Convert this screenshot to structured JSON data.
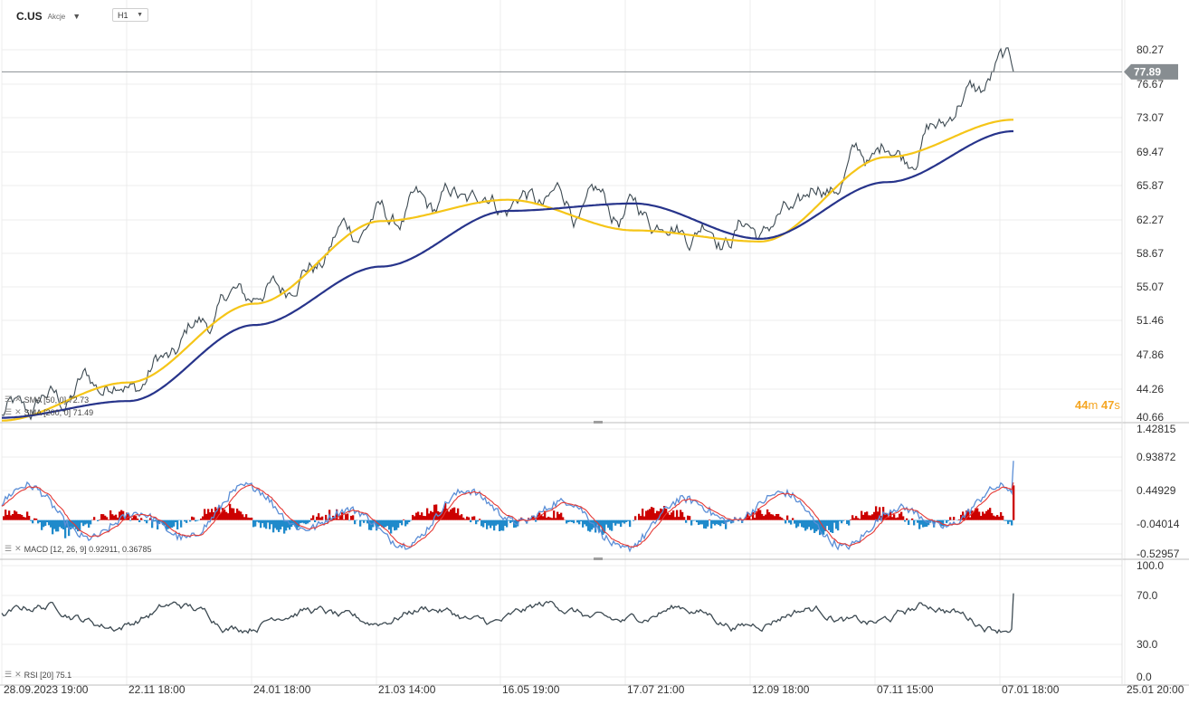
{
  "header": {
    "symbol": "C.US",
    "symbol_type": "Akcje",
    "timeframe": "H1"
  },
  "current_price": "77.89",
  "countdown": {
    "minutes": "44",
    "minutes_unit": "m",
    "seconds": "47",
    "seconds_unit": "s"
  },
  "indicators": {
    "sma50_label": "SMA [50, 0] 72.73",
    "sma200_label": "SMA [200, 0] 71.49",
    "macd_label": "MACD [12, 26, 9] 0.92911, 0.36785",
    "rsi_label": "RSI [20] 75.1"
  },
  "colors": {
    "price": "#3d4a52",
    "sma50": "#f5c518",
    "sma200": "#27348b",
    "macd_line": "#5b8ed6",
    "signal_line": "#e53935",
    "hist_pos": "#cc0000",
    "hist_neg": "#1f8acb",
    "rsi": "#3d4a52",
    "price_tag": "#878d91",
    "countdown": "#f5a623"
  },
  "chart_data": [
    {
      "type": "line",
      "title": "C.US",
      "y_ticks": [
        "80.27",
        "76.67",
        "73.07",
        "69.47",
        "65.87",
        "62.27",
        "58.67",
        "55.07",
        "51.46",
        "47.86",
        "44.26",
        "40.66"
      ],
      "ylim": [
        40.66,
        80.27
      ],
      "x_ticks": [
        "28.09.2023 19:00",
        "22.11 18:00",
        "24.01 18:00",
        "21.03 14:00",
        "16.05 19:00",
        "17.07 21:00",
        "12.09 18:00",
        "07.11 15:00",
        "07.01 18:00",
        "25.01 20:00"
      ],
      "series": [
        {
          "name": "C.US",
          "x": [
            "28.09.2023 19:00",
            "22.11 18:00",
            "24.01 18:00",
            "21.03 14:00",
            "16.05 19:00",
            "17.07 21:00",
            "12.09 18:00",
            "07.11 15:00",
            "07.01 18:00"
          ],
          "values": [
            40.66,
            44.8,
            53.8,
            62.1,
            64.3,
            62.4,
            61.2,
            69.3,
            77.89
          ]
        },
        {
          "name": "SMA [50, 0]",
          "x": [
            "28.09.2023 19:00",
            "22.11 18:00",
            "24.01 18:00",
            "21.03 14:00",
            "16.05 19:00",
            "17.07 21:00",
            "12.09 18:00",
            "07.11 15:00",
            "07.01 18:00"
          ],
          "values": [
            40.3,
            44.4,
            52.9,
            61.8,
            64.1,
            60.8,
            59.6,
            68.7,
            72.73
          ]
        },
        {
          "name": "SMA [200, 0]",
          "x": [
            "28.09.2023 19:00",
            "22.11 18:00",
            "24.01 18:00",
            "21.03 14:00",
            "16.05 19:00",
            "17.07 21:00",
            "12.09 18:00",
            "07.11 15:00",
            "07.01 18:00"
          ],
          "values": [
            40.6,
            42.4,
            50.6,
            56.9,
            62.9,
            63.7,
            59.9,
            66.0,
            71.49
          ]
        }
      ]
    },
    {
      "type": "bar",
      "title": "MACD [12, 26, 9]",
      "y_ticks": [
        "1.42815",
        "0.93872",
        "0.44929",
        "-0.04014",
        "-0.52957"
      ],
      "ylim": [
        -0.52957,
        1.42815
      ],
      "series": [
        {
          "name": "MACD [12, 26, 9]",
          "last": 0.92911
        },
        {
          "name": "MACD [12, 26, 9]",
          "last": 0.36785
        }
      ]
    },
    {
      "type": "line",
      "title": "RSI [20]",
      "y_ticks": [
        "100.0",
        "70.0",
        "30.0",
        "0.0"
      ],
      "ylim": [
        0,
        100
      ],
      "series": [
        {
          "name": "RSI [20]",
          "last": 75.1
        }
      ]
    }
  ]
}
